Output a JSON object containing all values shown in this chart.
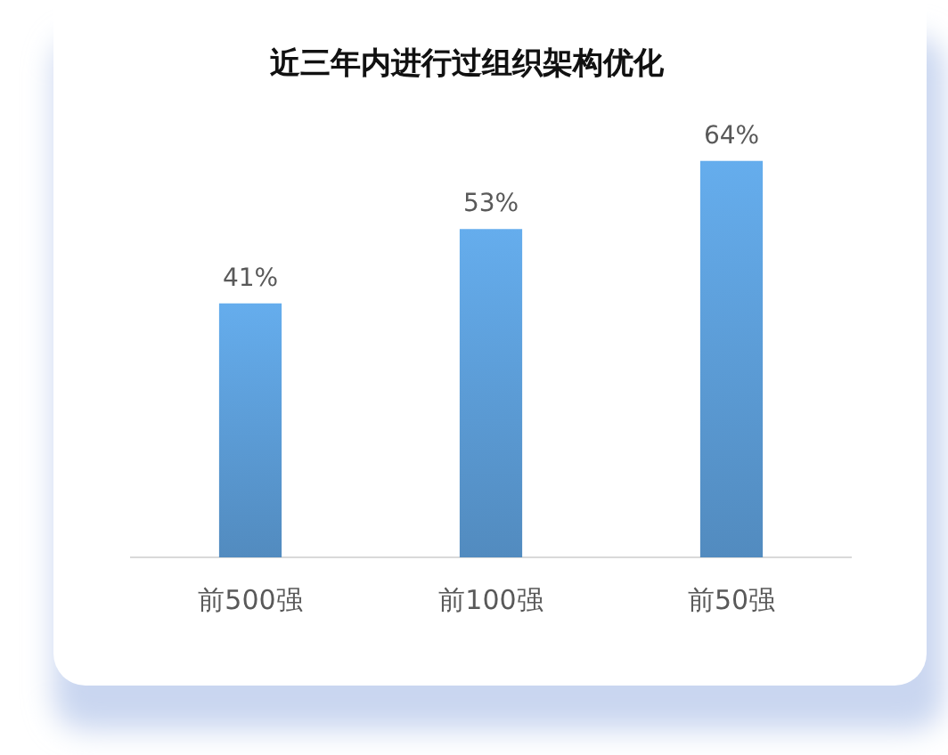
{
  "chart_data": {
    "type": "bar",
    "title": "近三年内进行过组织架构优化",
    "categories": [
      "前500强",
      "前100强",
      "前50强"
    ],
    "values": [
      41,
      53,
      64
    ],
    "value_labels": [
      "41%",
      "53%",
      "64%"
    ],
    "color": "#5b9bd5"
  }
}
